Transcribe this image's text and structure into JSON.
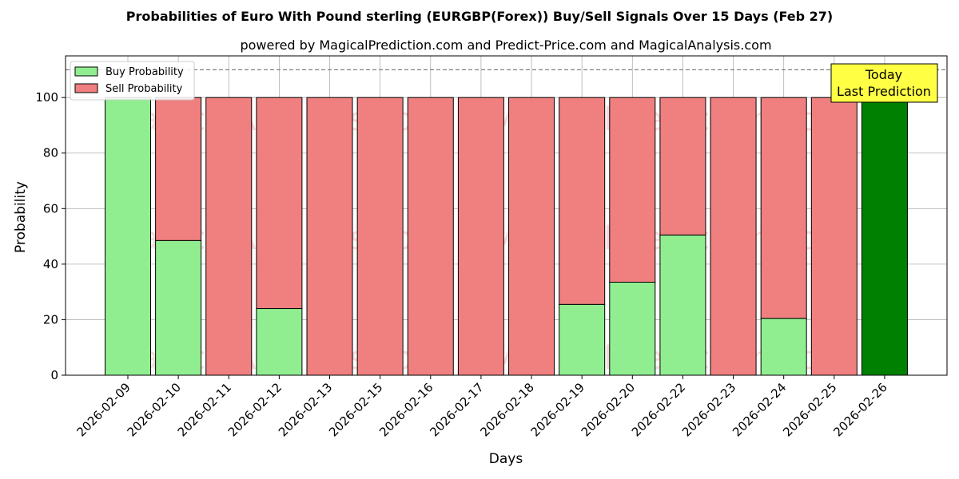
{
  "chart_data": {
    "type": "bar",
    "stacked": true,
    "title": "Probabilities of Euro With Pound sterling (EURGBP(Forex)) Buy/Sell Signals Over 15 Days (Feb 27)",
    "subtitle": "powered by MagicalPrediction.com and Predict-Price.com and MagicalAnalysis.com",
    "xlabel": "Days",
    "ylabel": "Probability",
    "ylim": [
      0,
      115
    ],
    "yticks": [
      0,
      20,
      40,
      60,
      80,
      100
    ],
    "reference_line": 110,
    "grid": true,
    "legend_position": "top-left",
    "categories": [
      "2026-02-09",
      "2026-02-10",
      "2026-02-11",
      "2026-02-12",
      "2026-02-13",
      "2026-02-15",
      "2026-02-16",
      "2026-02-17",
      "2026-02-18",
      "2026-02-19",
      "2026-02-20",
      "2026-02-22",
      "2026-02-23",
      "2026-02-24",
      "2026-02-25",
      "2026-02-26"
    ],
    "series": [
      {
        "name": "Buy Probability",
        "color": "#90ee90",
        "values": [
          100,
          48.5,
          0,
          24,
          0,
          0,
          0,
          0,
          0,
          25.5,
          33.5,
          50.5,
          0,
          20.5,
          0,
          100
        ]
      },
      {
        "name": "Sell Probability",
        "color": "#f08080",
        "values": [
          0,
          51.5,
          100,
          76,
          100,
          100,
          100,
          100,
          100,
          74.5,
          66.5,
          49.5,
          100,
          79.5,
          100,
          0
        ]
      }
    ],
    "highlight": {
      "index": 15,
      "color": "#008000",
      "label_line1": "Today",
      "label_line2": "Last Prediction",
      "box_color": "#ffff44"
    },
    "watermarks": [
      "MagicalAnalysis.com",
      "MagicalPrediction.com"
    ]
  }
}
